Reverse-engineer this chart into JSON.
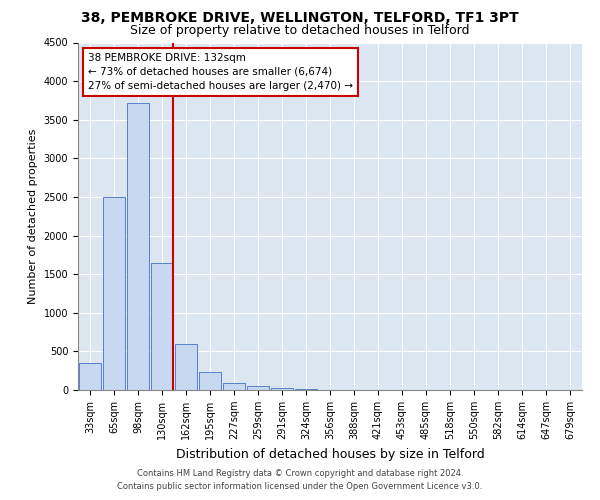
{
  "title": "38, PEMBROKE DRIVE, WELLINGTON, TELFORD, TF1 3PT",
  "subtitle": "Size of property relative to detached houses in Telford",
  "xlabel": "Distribution of detached houses by size in Telford",
  "ylabel": "Number of detached properties",
  "footer_line1": "Contains HM Land Registry data © Crown copyright and database right 2024.",
  "footer_line2": "Contains public sector information licensed under the Open Government Licence v3.0.",
  "annotation_line1": "38 PEMBROKE DRIVE: 132sqm",
  "annotation_line2": "← 73% of detached houses are smaller (6,674)",
  "annotation_line3": "27% of semi-detached houses are larger (2,470) →",
  "bar_labels": [
    "33sqm",
    "65sqm",
    "98sqm",
    "130sqm",
    "162sqm",
    "195sqm",
    "227sqm",
    "259sqm",
    "291sqm",
    "324sqm",
    "356sqm",
    "388sqm",
    "421sqm",
    "453sqm",
    "485sqm",
    "518sqm",
    "550sqm",
    "582sqm",
    "614sqm",
    "647sqm",
    "679sqm"
  ],
  "bar_values": [
    350,
    2500,
    3720,
    1640,
    590,
    230,
    95,
    50,
    20,
    10,
    5,
    0,
    0,
    0,
    0,
    0,
    0,
    0,
    0,
    0,
    0
  ],
  "bar_color": "#c6d9f1",
  "bar_edge_color": "#4472c4",
  "vline_color": "#cc0000",
  "ylim": [
    0,
    4500
  ],
  "yticks": [
    0,
    500,
    1000,
    1500,
    2000,
    2500,
    3000,
    3500,
    4000,
    4500
  ],
  "bg_color": "#ffffff",
  "plot_bg_color": "#dce6f1",
  "grid_color": "#ffffff",
  "annotation_box_color": "#cc0000",
  "title_fontsize": 10,
  "subtitle_fontsize": 9,
  "axis_label_fontsize": 8,
  "tick_fontsize": 7,
  "footer_fontsize": 6,
  "annotation_fontsize": 7.5
}
